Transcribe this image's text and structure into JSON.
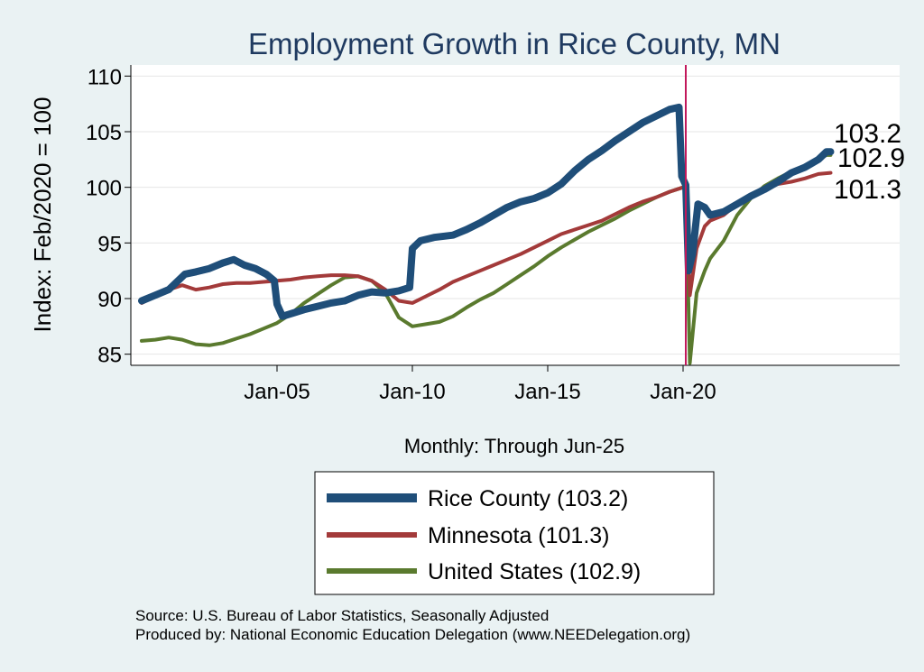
{
  "chart_data": {
    "type": "line",
    "title": "Employment Growth in Rice  County, MN",
    "ylabel": "Index: Feb/2020 = 100",
    "xlabel": "Monthly: Through Jun-25",
    "ylim": [
      84,
      111
    ],
    "xlim": [
      1999.6,
      2028.0
    ],
    "y_ticks": [
      85,
      90,
      95,
      100,
      105,
      110
    ],
    "x_ticks": [
      {
        "label": "Jan-05",
        "value": 2005.0
      },
      {
        "label": "Jan-10",
        "value": 2010.0
      },
      {
        "label": "Jan-15",
        "value": 2015.0
      },
      {
        "label": "Jan-20",
        "value": 2020.0
      }
    ],
    "vline": {
      "value": 2020.1,
      "color": "#c2185b"
    },
    "series": [
      {
        "name": "Rice  County",
        "legend_label": "Rice  County (103.2)",
        "end_label": "103.2",
        "color": "#1f4e79",
        "width": 8,
        "points": [
          [
            2000.0,
            89.8
          ],
          [
            2000.5,
            90.3
          ],
          [
            2001.0,
            90.8
          ],
          [
            2001.3,
            91.5
          ],
          [
            2001.6,
            92.2
          ],
          [
            2002.0,
            92.4
          ],
          [
            2002.5,
            92.7
          ],
          [
            2003.0,
            93.2
          ],
          [
            2003.4,
            93.5
          ],
          [
            2003.8,
            93.0
          ],
          [
            2004.2,
            92.7
          ],
          [
            2004.6,
            92.2
          ],
          [
            2004.9,
            91.6
          ],
          [
            2005.0,
            89.5
          ],
          [
            2005.2,
            88.4
          ],
          [
            2005.6,
            88.7
          ],
          [
            2006.0,
            89.0
          ],
          [
            2006.5,
            89.3
          ],
          [
            2007.0,
            89.6
          ],
          [
            2007.5,
            89.8
          ],
          [
            2008.0,
            90.3
          ],
          [
            2008.5,
            90.6
          ],
          [
            2009.0,
            90.5
          ],
          [
            2009.5,
            90.7
          ],
          [
            2009.9,
            91.0
          ],
          [
            2010.0,
            94.5
          ],
          [
            2010.3,
            95.2
          ],
          [
            2010.8,
            95.5
          ],
          [
            2011.5,
            95.7
          ],
          [
            2012.0,
            96.2
          ],
          [
            2012.5,
            96.8
          ],
          [
            2013.0,
            97.5
          ],
          [
            2013.5,
            98.2
          ],
          [
            2014.0,
            98.7
          ],
          [
            2014.5,
            99.0
          ],
          [
            2015.0,
            99.5
          ],
          [
            2015.5,
            100.3
          ],
          [
            2016.0,
            101.5
          ],
          [
            2016.5,
            102.5
          ],
          [
            2017.0,
            103.3
          ],
          [
            2017.5,
            104.2
          ],
          [
            2018.0,
            105.0
          ],
          [
            2018.5,
            105.8
          ],
          [
            2019.0,
            106.4
          ],
          [
            2019.5,
            107.0
          ],
          [
            2019.85,
            107.2
          ],
          [
            2019.95,
            101.0
          ],
          [
            2020.1,
            100.2
          ],
          [
            2020.2,
            92.5
          ],
          [
            2020.35,
            94.0
          ],
          [
            2020.55,
            98.5
          ],
          [
            2020.8,
            98.2
          ],
          [
            2021.0,
            97.5
          ],
          [
            2021.5,
            97.8
          ],
          [
            2022.0,
            98.5
          ],
          [
            2022.5,
            99.2
          ],
          [
            2023.0,
            99.8
          ],
          [
            2023.5,
            100.5
          ],
          [
            2024.0,
            101.3
          ],
          [
            2024.5,
            101.8
          ],
          [
            2025.0,
            102.5
          ],
          [
            2025.3,
            103.2
          ],
          [
            2025.45,
            103.2
          ]
        ]
      },
      {
        "name": "Minnesota",
        "legend_label": "Minnesota (101.3)",
        "end_label": "101.3",
        "color": "#a33a3a",
        "width": 4,
        "points": [
          [
            2000.0,
            89.6
          ],
          [
            2000.5,
            90.2
          ],
          [
            2001.0,
            90.8
          ],
          [
            2001.5,
            91.2
          ],
          [
            2002.0,
            90.8
          ],
          [
            2002.5,
            91.0
          ],
          [
            2003.0,
            91.3
          ],
          [
            2003.5,
            91.4
          ],
          [
            2004.0,
            91.4
          ],
          [
            2004.5,
            91.5
          ],
          [
            2005.0,
            91.6
          ],
          [
            2005.5,
            91.7
          ],
          [
            2006.0,
            91.9
          ],
          [
            2006.5,
            92.0
          ],
          [
            2007.0,
            92.1
          ],
          [
            2007.5,
            92.1
          ],
          [
            2008.0,
            92.0
          ],
          [
            2008.5,
            91.6
          ],
          [
            2009.0,
            90.8
          ],
          [
            2009.5,
            89.8
          ],
          [
            2010.0,
            89.6
          ],
          [
            2010.5,
            90.2
          ],
          [
            2011.0,
            90.8
          ],
          [
            2011.5,
            91.5
          ],
          [
            2012.0,
            92.0
          ],
          [
            2012.5,
            92.5
          ],
          [
            2013.0,
            93.0
          ],
          [
            2013.5,
            93.5
          ],
          [
            2014.0,
            94.0
          ],
          [
            2014.5,
            94.6
          ],
          [
            2015.0,
            95.2
          ],
          [
            2015.5,
            95.8
          ],
          [
            2016.0,
            96.2
          ],
          [
            2016.5,
            96.6
          ],
          [
            2017.0,
            97.0
          ],
          [
            2017.5,
            97.6
          ],
          [
            2018.0,
            98.2
          ],
          [
            2018.5,
            98.7
          ],
          [
            2019.0,
            99.1
          ],
          [
            2019.5,
            99.6
          ],
          [
            2020.0,
            100.0
          ],
          [
            2020.1,
            100.0
          ],
          [
            2020.25,
            90.3
          ],
          [
            2020.5,
            94.5
          ],
          [
            2020.8,
            96.5
          ],
          [
            2021.0,
            97.0
          ],
          [
            2021.5,
            97.5
          ],
          [
            2022.0,
            98.5
          ],
          [
            2022.5,
            99.2
          ],
          [
            2023.0,
            99.8
          ],
          [
            2023.5,
            100.3
          ],
          [
            2024.0,
            100.5
          ],
          [
            2024.5,
            100.8
          ],
          [
            2025.0,
            101.2
          ],
          [
            2025.45,
            101.3
          ]
        ]
      },
      {
        "name": "United States",
        "legend_label": "United States (102.9)",
        "end_label": "102.9",
        "color": "#5a7a2e",
        "width": 4,
        "points": [
          [
            2000.0,
            86.2
          ],
          [
            2000.5,
            86.3
          ],
          [
            2001.0,
            86.5
          ],
          [
            2001.5,
            86.3
          ],
          [
            2002.0,
            85.9
          ],
          [
            2002.5,
            85.8
          ],
          [
            2003.0,
            86.0
          ],
          [
            2003.5,
            86.4
          ],
          [
            2004.0,
            86.8
          ],
          [
            2004.5,
            87.3
          ],
          [
            2005.0,
            87.8
          ],
          [
            2005.5,
            88.6
          ],
          [
            2006.0,
            89.6
          ],
          [
            2006.5,
            90.4
          ],
          [
            2007.0,
            91.2
          ],
          [
            2007.5,
            91.9
          ],
          [
            2008.0,
            92.0
          ],
          [
            2008.5,
            91.6
          ],
          [
            2009.0,
            90.5
          ],
          [
            2009.5,
            88.3
          ],
          [
            2010.0,
            87.5
          ],
          [
            2010.5,
            87.7
          ],
          [
            2011.0,
            87.9
          ],
          [
            2011.5,
            88.4
          ],
          [
            2012.0,
            89.2
          ],
          [
            2012.5,
            89.9
          ],
          [
            2013.0,
            90.5
          ],
          [
            2013.5,
            91.3
          ],
          [
            2014.0,
            92.1
          ],
          [
            2014.5,
            92.9
          ],
          [
            2015.0,
            93.8
          ],
          [
            2015.5,
            94.6
          ],
          [
            2016.0,
            95.3
          ],
          [
            2016.5,
            96.0
          ],
          [
            2017.0,
            96.6
          ],
          [
            2017.5,
            97.2
          ],
          [
            2018.0,
            97.9
          ],
          [
            2018.5,
            98.5
          ],
          [
            2019.0,
            99.1
          ],
          [
            2019.5,
            99.6
          ],
          [
            2020.0,
            100.0
          ],
          [
            2020.1,
            100.0
          ],
          [
            2020.25,
            84.2
          ],
          [
            2020.5,
            90.5
          ],
          [
            2020.8,
            92.5
          ],
          [
            2021.0,
            93.6
          ],
          [
            2021.5,
            95.2
          ],
          [
            2022.0,
            97.5
          ],
          [
            2022.5,
            99.0
          ],
          [
            2023.0,
            100.1
          ],
          [
            2023.5,
            100.8
          ],
          [
            2024.0,
            101.4
          ],
          [
            2024.5,
            101.8
          ],
          [
            2025.0,
            102.5
          ],
          [
            2025.3,
            102.9
          ],
          [
            2025.45,
            102.9
          ]
        ]
      }
    ]
  },
  "source_line": "Source: U.S. Bureau of Labor Statistics, Seasonally Adjusted",
  "produced_line": "Produced by: National Economic Education Delegation (www.NEEDelegation.org)"
}
